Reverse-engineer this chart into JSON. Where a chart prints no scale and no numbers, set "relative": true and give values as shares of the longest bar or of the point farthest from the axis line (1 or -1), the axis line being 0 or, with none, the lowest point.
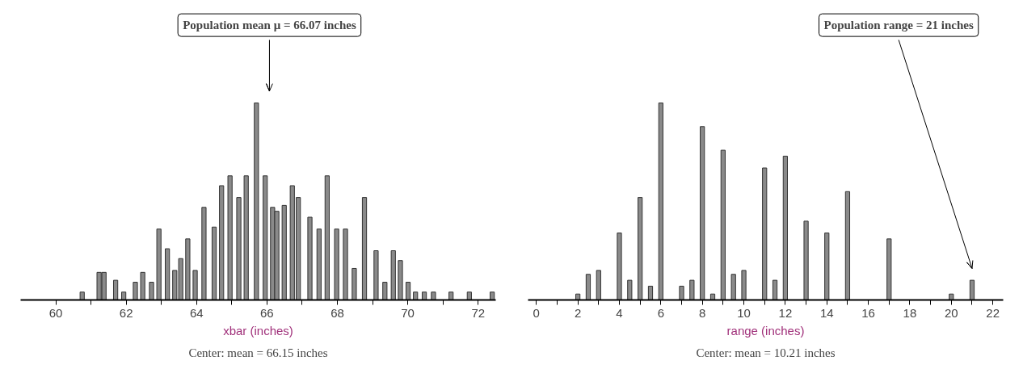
{
  "chart_data": [
    {
      "type": "bar",
      "relative": true,
      "tick_labels": "x",
      "xlabel": "xbar (inches)",
      "color": "#8a8a8a",
      "x": [
        60.75,
        61.23,
        61.37,
        61.7,
        61.93,
        62.26,
        62.47,
        62.72,
        62.93,
        63.17,
        63.38,
        63.55,
        63.75,
        63.96,
        64.21,
        64.5,
        64.71,
        64.95,
        65.2,
        65.41,
        65.7,
        65.95,
        66.16,
        66.28,
        66.49,
        66.72,
        66.89,
        67.22,
        67.48,
        67.71,
        67.98,
        68.23,
        68.48,
        68.77,
        69.1,
        69.35,
        69.59,
        69.79,
        70.01,
        70.22,
        70.47,
        70.73,
        71.23,
        71.75,
        72.4
      ],
      "values": [
        0.04,
        0.14,
        0.14,
        0.1,
        0.04,
        0.09,
        0.14,
        0.09,
        0.36,
        0.26,
        0.15,
        0.21,
        0.31,
        0.15,
        0.47,
        0.37,
        0.58,
        0.63,
        0.52,
        0.63,
        1,
        0.63,
        0.47,
        0.45,
        0.48,
        0.58,
        0.52,
        0.42,
        0.36,
        0.63,
        0.36,
        0.36,
        0.16,
        0.52,
        0.25,
        0.09,
        0.25,
        0.2,
        0.09,
        0.04,
        0.04,
        0.04,
        0.04,
        0.04,
        0.04
      ],
      "xlim": [
        59,
        72.5
      ],
      "xticks": [
        60,
        {
          "value": 61,
          "label": null
        },
        62,
        {
          "value": 63,
          "label": null
        },
        64,
        {
          "value": 65,
          "label": null
        },
        66,
        {
          "value": 67,
          "label": null
        },
        68,
        {
          "value": 69,
          "label": null
        },
        70,
        {
          "value": 71,
          "label": null
        },
        72
      ],
      "ref_lines": [
        {
          "axis": "x",
          "value": 66.07,
          "label": "Population mean μ = 66.07 inches"
        }
      ],
      "annotations": [
        "Center: mean = 66.15 inches"
      ]
    },
    {
      "type": "bar",
      "relative": true,
      "tick_labels": "x",
      "xlabel": "range (inches)",
      "color": "#8a8a8a",
      "x": [
        2,
        2.5,
        3,
        4,
        4.5,
        5,
        5.5,
        6,
        7,
        7.5,
        8,
        8.5,
        9,
        9.5,
        10,
        11,
        11.5,
        12,
        13,
        14,
        15,
        17,
        20,
        21
      ],
      "values": [
        0.03,
        0.13,
        0.15,
        0.34,
        0.1,
        0.52,
        0.07,
        1,
        0.07,
        0.1,
        0.88,
        0.03,
        0.76,
        0.13,
        0.15,
        0.67,
        0.1,
        0.73,
        0.4,
        0.34,
        0.55,
        0.31,
        0.03,
        0.1
      ],
      "xlim": [
        -0.4,
        22.5
      ],
      "xticks": [
        0,
        {
          "value": 1,
          "label": null
        },
        2,
        {
          "value": 3,
          "label": null
        },
        4,
        {
          "value": 5,
          "label": null
        },
        6,
        {
          "value": 7,
          "label": null
        },
        8,
        {
          "value": 9,
          "label": null
        },
        10,
        {
          "value": 11,
          "label": null
        },
        12,
        {
          "value": 13,
          "label": null
        },
        14,
        {
          "value": 15,
          "label": null
        },
        16,
        {
          "value": 17,
          "label": null
        },
        18,
        {
          "value": 19,
          "label": null
        },
        20,
        {
          "value": 21,
          "label": null
        },
        22
      ],
      "annotations": [
        {
          "text": "Population range = 21 inches",
          "x": 21
        },
        "Center: mean = 10.21 inches"
      ]
    }
  ]
}
